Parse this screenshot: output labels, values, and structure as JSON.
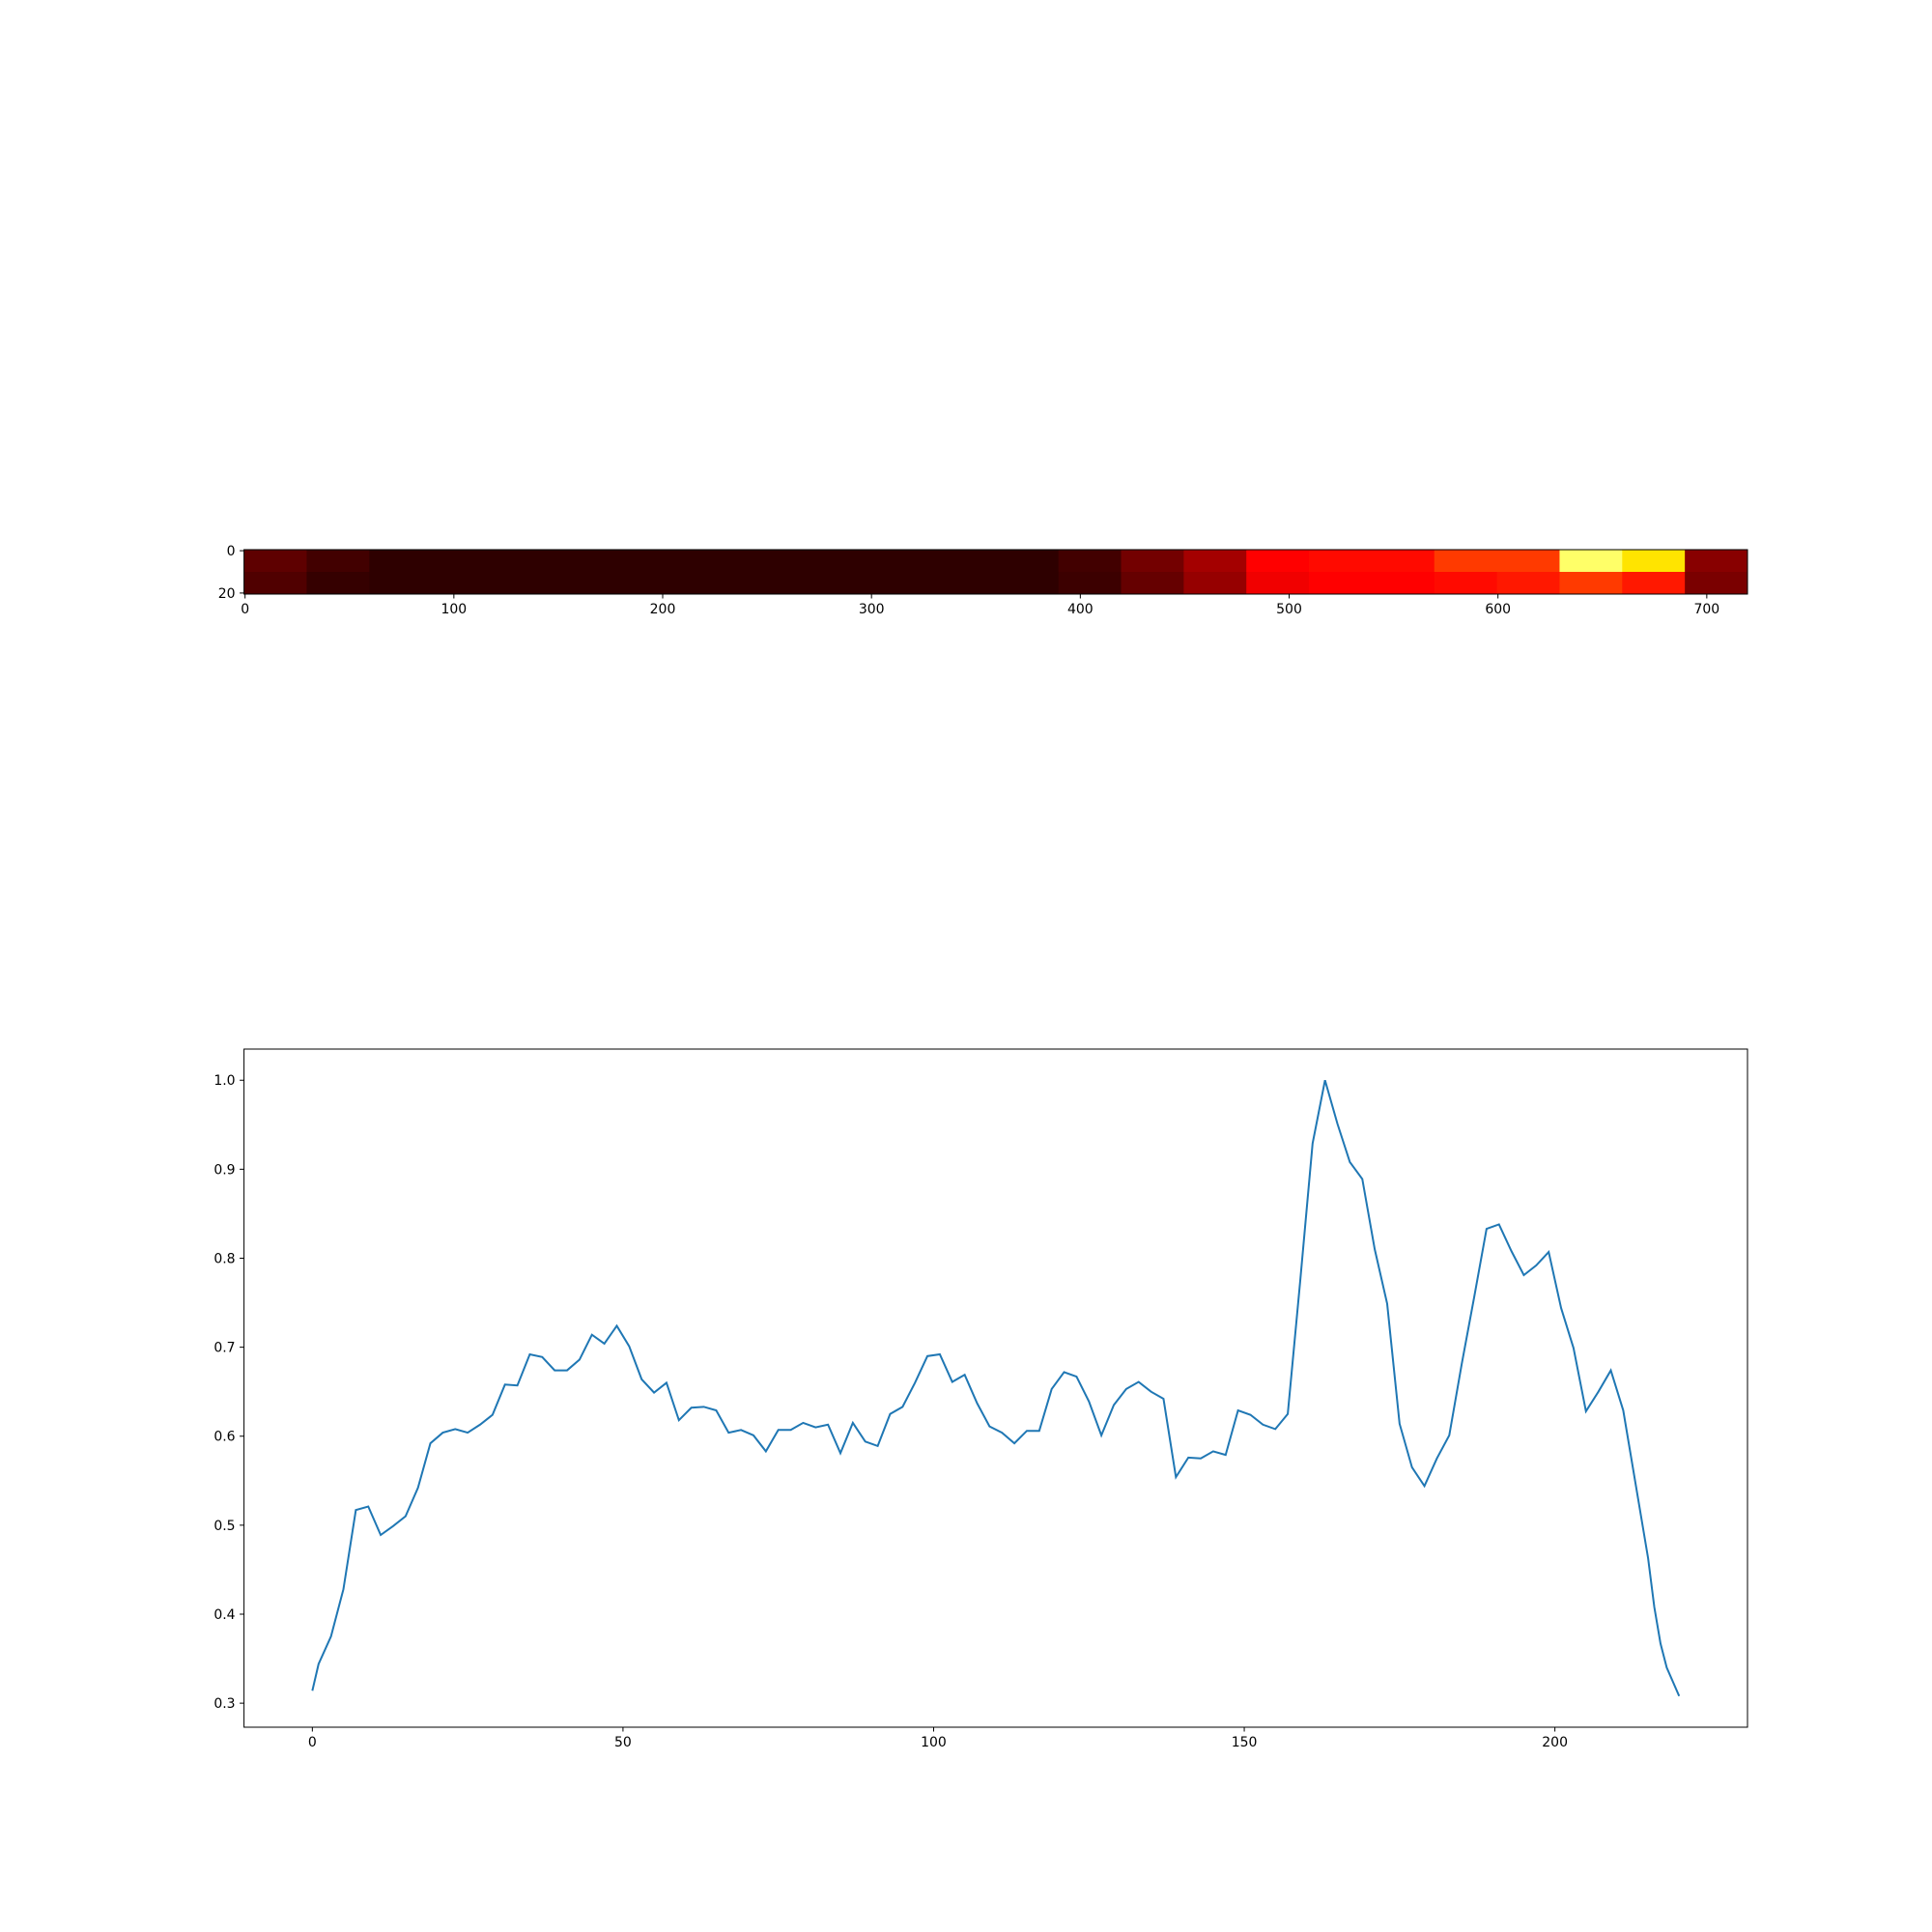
{
  "chart_data": [
    {
      "type": "heatmap",
      "colormap": "hot",
      "values": [
        [
          0.12,
          0.08,
          0.05,
          0.05,
          0.05,
          0.05,
          0.05,
          0.05,
          0.05,
          0.05,
          0.05,
          0.05,
          0.05,
          0.08,
          0.15,
          0.22,
          0.35,
          0.38,
          0.38,
          0.45,
          0.45,
          0.85,
          0.7,
          0.18
        ],
        [
          0.1,
          0.06,
          0.05,
          0.05,
          0.05,
          0.05,
          0.05,
          0.05,
          0.05,
          0.05,
          0.05,
          0.05,
          0.05,
          0.07,
          0.13,
          0.2,
          0.33,
          0.36,
          0.36,
          0.38,
          0.4,
          0.45,
          0.4,
          0.16
        ]
      ],
      "xlim": [
        -0.5,
        719.5
      ],
      "ylim": [
        20.5,
        -0.5
      ],
      "xticks": [
        0,
        100,
        200,
        300,
        400,
        500,
        600,
        700
      ],
      "yticks": [
        0,
        20
      ]
    },
    {
      "type": "line",
      "color": "#1f77b4",
      "x": [
        0,
        1,
        3,
        5,
        7,
        9,
        11,
        13,
        15,
        17,
        19,
        21,
        23,
        25,
        27,
        29,
        31,
        33,
        35,
        37,
        39,
        41,
        43,
        45,
        47,
        49,
        51,
        53,
        55,
        57,
        59,
        61,
        63,
        65,
        67,
        69,
        71,
        73,
        75,
        77,
        79,
        81,
        83,
        85,
        87,
        89,
        91,
        93,
        95,
        97,
        99,
        101,
        103,
        105,
        107,
        109,
        111,
        113,
        115,
        117,
        119,
        121,
        123,
        125,
        127,
        129,
        131,
        133,
        135,
        137,
        139,
        141,
        143,
        145,
        147,
        149,
        151,
        153,
        155,
        157,
        159,
        161,
        163,
        165,
        167,
        169,
        171,
        173,
        175,
        177,
        179,
        181,
        183,
        185,
        187,
        189,
        191,
        193,
        195,
        197,
        199,
        201,
        203,
        205,
        207,
        209,
        211,
        213,
        215,
        216,
        217,
        218,
        220
      ],
      "values": [
        0.314,
        0.344,
        0.375,
        0.428,
        0.517,
        0.521,
        0.489,
        0.499,
        0.51,
        0.542,
        0.592,
        0.604,
        0.608,
        0.604,
        0.613,
        0.624,
        0.658,
        0.657,
        0.692,
        0.689,
        0.674,
        0.674,
        0.686,
        0.714,
        0.704,
        0.724,
        0.701,
        0.664,
        0.649,
        0.66,
        0.618,
        0.632,
        0.633,
        0.629,
        0.604,
        0.607,
        0.601,
        0.583,
        0.607,
        0.607,
        0.615,
        0.61,
        0.613,
        0.581,
        0.615,
        0.594,
        0.589,
        0.625,
        0.633,
        0.66,
        0.69,
        0.692,
        0.661,
        0.669,
        0.637,
        0.611,
        0.604,
        0.592,
        0.606,
        0.606,
        0.653,
        0.672,
        0.667,
        0.639,
        0.601,
        0.635,
        0.653,
        0.661,
        0.65,
        0.642,
        0.554,
        0.576,
        0.575,
        0.583,
        0.579,
        0.629,
        0.624,
        0.613,
        0.608,
        0.625,
        0.774,
        0.929,
        1.0,
        0.951,
        0.908,
        0.889,
        0.81,
        0.749,
        0.614,
        0.565,
        0.544,
        0.575,
        0.601,
        0.681,
        0.756,
        0.833,
        0.838,
        0.808,
        0.781,
        0.792,
        0.807,
        0.744,
        0.699,
        0.628,
        0.65,
        0.674,
        0.629,
        0.546,
        0.463,
        0.408,
        0.367,
        0.34,
        0.308
      ],
      "xlim": [
        -11,
        231
      ],
      "ylim": [
        0.273,
        1.035
      ],
      "xticks": [
        0,
        50,
        100,
        150,
        200
      ],
      "yticks": [
        0.3,
        0.4,
        0.5,
        0.6,
        0.7,
        0.8,
        0.9,
        {
          "value": 1,
          "label": "1.0"
        }
      ]
    }
  ]
}
